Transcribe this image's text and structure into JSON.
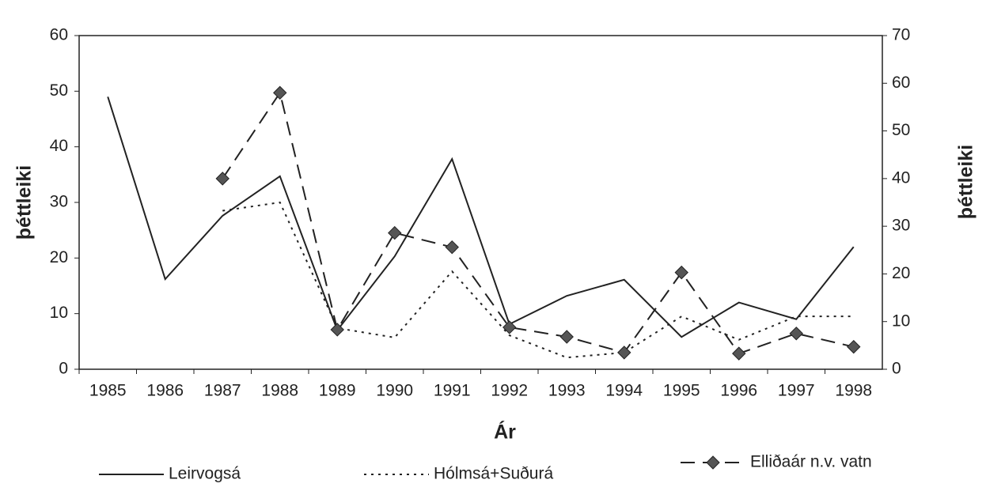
{
  "chart_data": {
    "type": "line",
    "x_label": "Ár",
    "y_label": "þéttleiki",
    "y2_label": "þéttleiki",
    "categories": [
      "1985",
      "1986",
      "1987",
      "1988",
      "1989",
      "1990",
      "1991",
      "1992",
      "1993",
      "1994",
      "1995",
      "1996",
      "1997",
      "1998"
    ],
    "ylim": [
      0,
      60
    ],
    "yticks": [
      0,
      10,
      20,
      30,
      40,
      50,
      60
    ],
    "y2lim": [
      0,
      70
    ],
    "y2ticks": [
      0,
      10,
      20,
      30,
      40,
      50,
      60,
      70
    ],
    "series": [
      {
        "name": "Leirvogsá",
        "color": "#222222",
        "dash": "solid",
        "values": [
          49,
          16.2,
          27.6,
          34.7,
          7,
          20.3,
          37.8,
          8.1,
          13.2,
          16.1,
          5.8,
          12,
          9,
          22
        ]
      },
      {
        "name": "Hólmsá+Suðurá",
        "color": "#222222",
        "dash": "dotted",
        "values": [
          null,
          null,
          28.5,
          30,
          7.4,
          5.7,
          17.6,
          6.1,
          2.1,
          3,
          9.5,
          5.3,
          9.5,
          9.5
        ]
      },
      {
        "name": "Elliðaár n.v. vatn",
        "color": "#222222",
        "dash": "dashed",
        "marker": "diamond",
        "marker_color": "#555555",
        "axis": "y2",
        "values": [
          null,
          null,
          40,
          58,
          8.3,
          28.6,
          25.6,
          8.8,
          6.8,
          3.5,
          20.3,
          3.3,
          7.5,
          4.7
        ]
      }
    ]
  }
}
